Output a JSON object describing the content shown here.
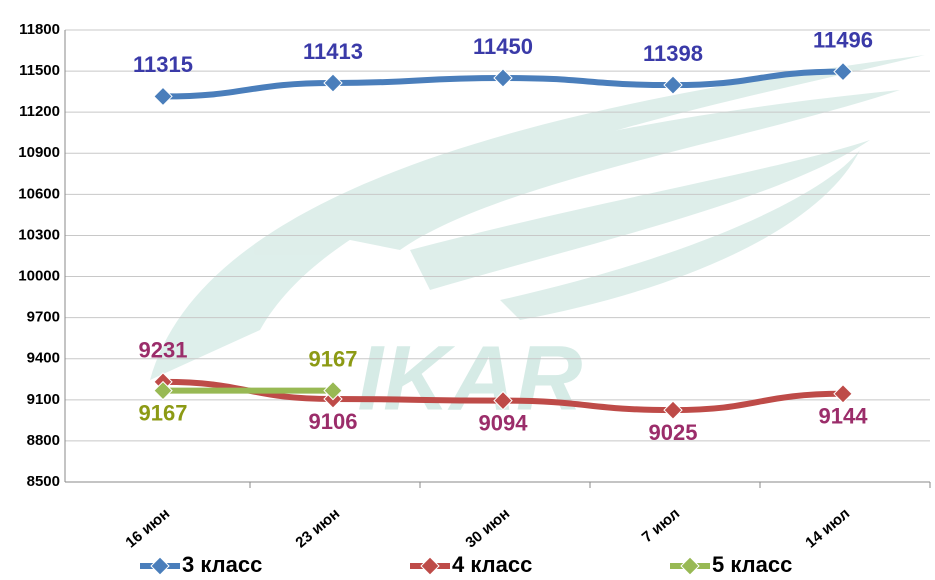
{
  "chart_data": {
    "type": "line",
    "watermark": "IKAR",
    "categories": [
      "16 июн",
      "23 июн",
      "30 июн",
      "7 июл",
      "14 июл"
    ],
    "series": [
      {
        "name": "3 класс",
        "color": "#4a7ebb",
        "label_color": "#3a3aa8",
        "values": [
          11315,
          11413,
          11450,
          11398,
          11496
        ]
      },
      {
        "name": "4 класс",
        "color": "#be4b48",
        "label_color": "#9b2d6a",
        "values": [
          9231,
          9106,
          9094,
          9025,
          9144
        ]
      },
      {
        "name": "5 класс",
        "color": "#98b954",
        "label_color": "#8c9a14",
        "values": [
          9167,
          9167,
          null,
          null,
          null
        ]
      }
    ],
    "ylim": [
      8500,
      11800
    ],
    "yticks": [
      8500,
      8800,
      9100,
      9400,
      9700,
      10000,
      10300,
      10600,
      10900,
      11200,
      11500,
      11800
    ],
    "grid": true
  }
}
